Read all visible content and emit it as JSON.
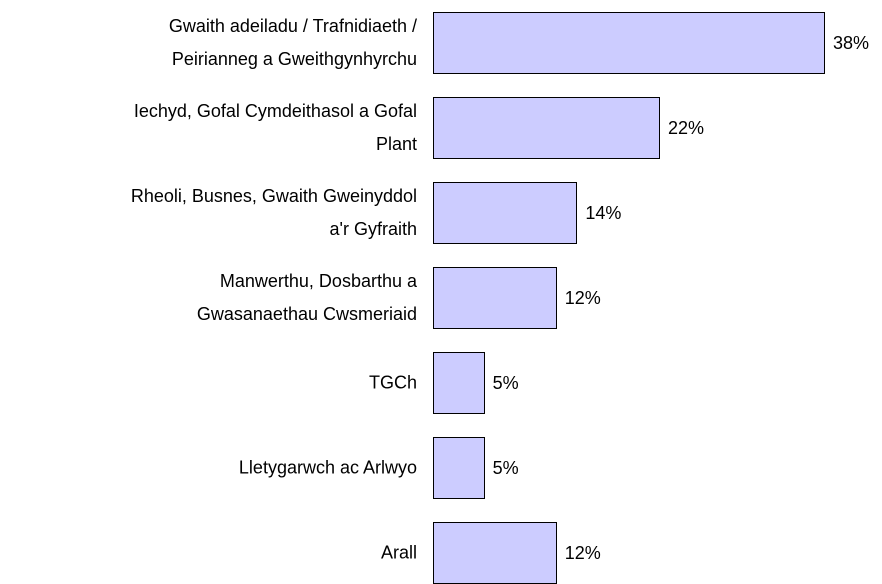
{
  "chart_data": {
    "type": "bar",
    "orientation": "horizontal",
    "categories": [
      "Gwaith adeiladu / Trafnidiaeth /\nPeirianneg a Gweithgynhyrchu",
      "Iechyd, Gofal Cymdeithasol a Gofal\nPlant",
      "Rheoli, Busnes, Gwaith Gweinyddol\na'r Gyfraith",
      "Manwerthu, Dosbarthu a\nGwasanaethau Cwsmeriaid",
      "TGCh",
      "Lletygarwch ac Arlwyo",
      "Arall"
    ],
    "values": [
      38,
      22,
      14,
      12,
      5,
      5,
      12
    ],
    "value_labels": [
      "38%",
      "22%",
      "14%",
      "12%",
      "5%",
      "5%",
      "12%"
    ],
    "color": "#ccccff"
  }
}
